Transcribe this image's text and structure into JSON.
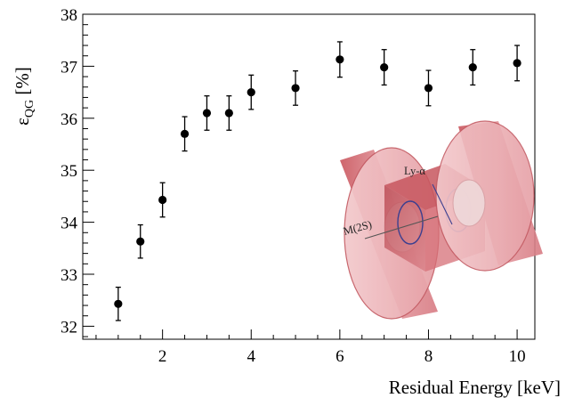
{
  "chart_data": {
    "type": "scatter",
    "xlabel": "Residual Energy [keV]",
    "ylabel_main": "ε",
    "ylabel_sub": "QG",
    "ylabel_unit": " [%]",
    "xlim": [
      0.2,
      10.4
    ],
    "ylim": [
      31.75,
      38
    ],
    "x_ticks": [
      2,
      4,
      6,
      8,
      10
    ],
    "x_tick_labels": [
      "2",
      "4",
      "6",
      "8",
      "10"
    ],
    "y_ticks": [
      32,
      33,
      34,
      35,
      36,
      37,
      38
    ],
    "y_tick_labels": [
      "32",
      "33",
      "34",
      "35",
      "36",
      "37",
      "38"
    ],
    "grid": false,
    "legend": "none",
    "series": [
      {
        "x": [
          1.0,
          1.5,
          2.0,
          2.5,
          3.0,
          3.5,
          4.0,
          5.0,
          6.0,
          7.0,
          8.0,
          9.0,
          10.0
        ],
        "y": [
          32.43,
          33.63,
          34.43,
          35.7,
          36.1,
          36.1,
          36.5,
          36.58,
          37.13,
          36.98,
          36.58,
          36.98,
          37.06
        ],
        "err": [
          0.32,
          0.32,
          0.33,
          0.33,
          0.33,
          0.33,
          0.33,
          0.33,
          0.34,
          0.34,
          0.34,
          0.34,
          0.34
        ],
        "color": "#000000"
      }
    ],
    "inset": {
      "description_labels": [
        "Ly-α",
        "M(2S)"
      ],
      "colors": {
        "disk": "#e8a3a8",
        "disk_edge": "#c24a52",
        "box": "#c8555d",
        "ring": "#3d3f8f"
      }
    }
  }
}
